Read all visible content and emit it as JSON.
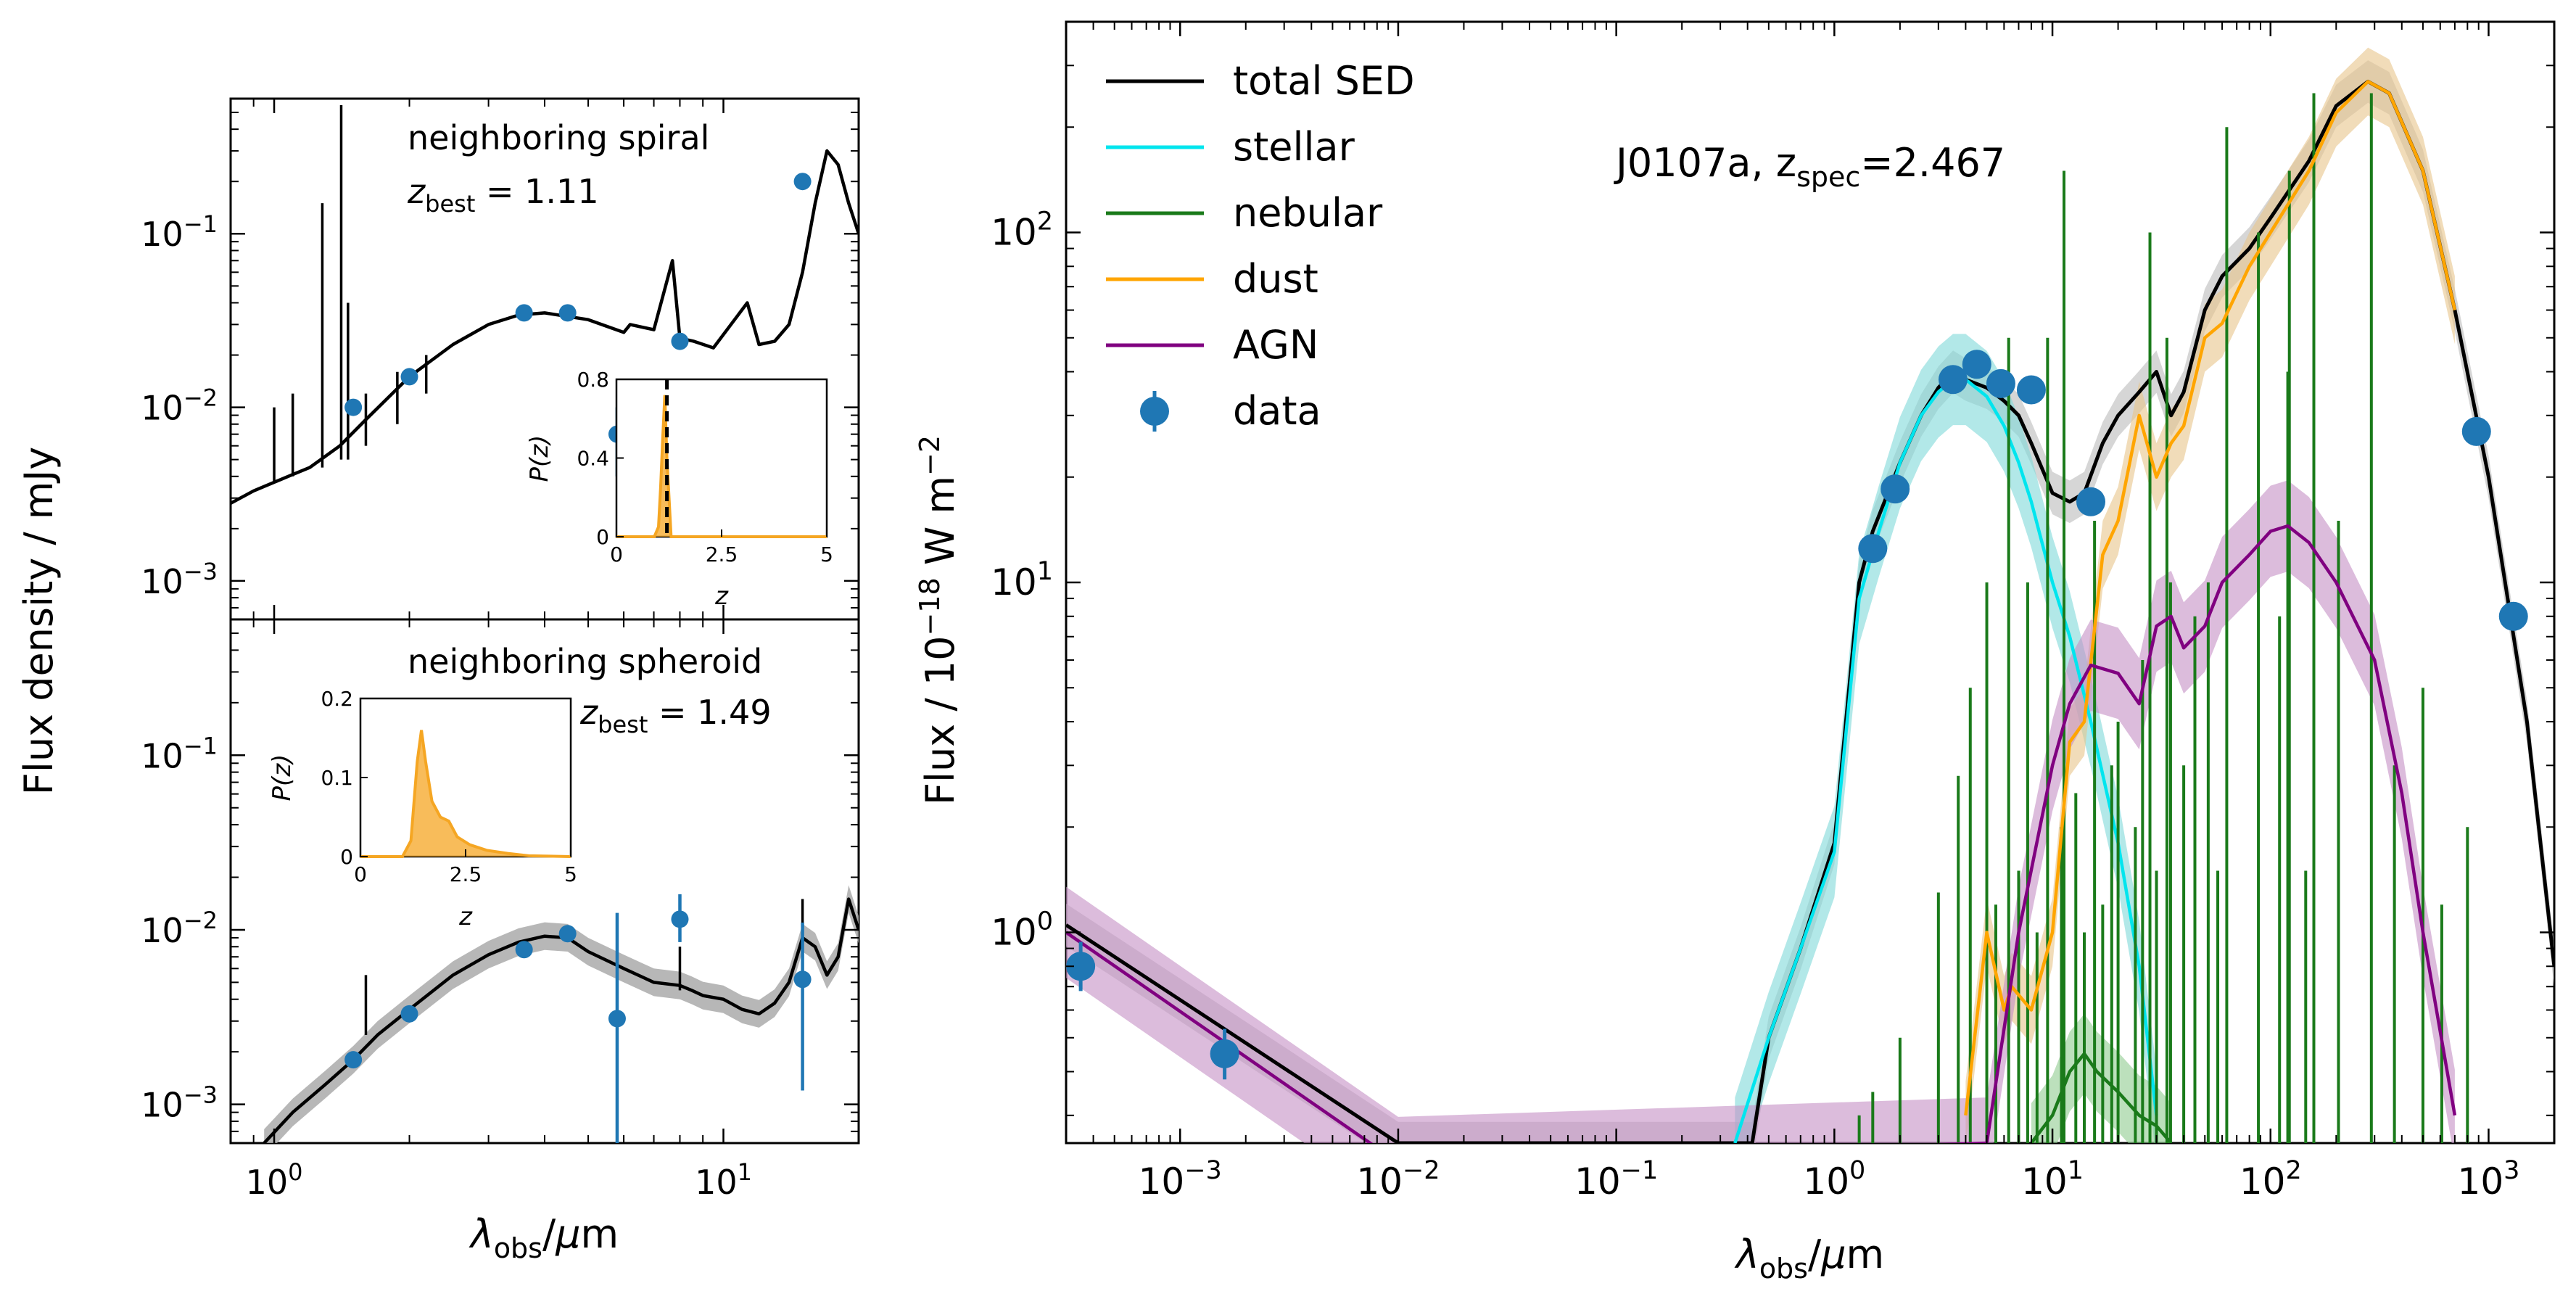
{
  "figure": {
    "left_ylabel": "Flux density / mJy",
    "left_xlabel": "λobs/μm",
    "right_ylabel": "Flux / 10−18 W m−2",
    "right_xlabel": "λobs/μm"
  },
  "chart_data": [
    {
      "id": "spiral",
      "type": "line",
      "title": "neighboring spiral",
      "annotation": {
        "prefix": "z",
        "sub": "best",
        "rest": " = 1.11"
      },
      "xscale": "log",
      "yscale": "log",
      "xlim": [
        0.8,
        20
      ],
      "ylim": [
        0.0006,
        0.6
      ],
      "xticks": [
        {
          "v": 1,
          "base": "10",
          "exp": "0"
        },
        {
          "v": 10,
          "base": "10",
          "exp": "1"
        }
      ],
      "yticks": [
        {
          "v": 0.001,
          "base": "10",
          "exp": "−3"
        },
        {
          "v": 0.01,
          "base": "10",
          "exp": "−2"
        },
        {
          "v": 0.1,
          "base": "10",
          "exp": "−1"
        }
      ],
      "series": [
        {
          "name": "total SED",
          "color": "#000000",
          "x": [
            0.8,
            0.9,
            1.0,
            1.1,
            1.2,
            1.4,
            1.6,
            2.0,
            2.5,
            3.0,
            3.5,
            4.0,
            5.0,
            6.0,
            6.2,
            7.0,
            7.7,
            8.0,
            8.6,
            9.5,
            11.3,
            12.0,
            13.0,
            14.0,
            15.0,
            16.0,
            17.0,
            18.0,
            19.0,
            20.0
          ],
          "y": [
            0.0028,
            0.0033,
            0.0037,
            0.0041,
            0.0045,
            0.006,
            0.0085,
            0.015,
            0.023,
            0.03,
            0.034,
            0.035,
            0.032,
            0.027,
            0.03,
            0.028,
            0.07,
            0.025,
            0.024,
            0.022,
            0.04,
            0.023,
            0.024,
            0.03,
            0.06,
            0.15,
            0.3,
            0.25,
            0.15,
            0.1
          ]
        },
        {
          "name": "emission lines",
          "color": "#000000",
          "lines": [
            [
              1.0,
              0.0037,
              0.01
            ],
            [
              1.1,
              0.004,
              0.012
            ],
            [
              1.28,
              0.0045,
              0.15
            ],
            [
              1.41,
              0.005,
              0.55
            ],
            [
              1.46,
              0.005,
              0.04
            ],
            [
              1.6,
              0.006,
              0.012
            ],
            [
              1.88,
              0.008,
              0.016
            ],
            [
              2.18,
              0.012,
              0.02
            ]
          ]
        }
      ],
      "points": [
        {
          "x": 1.5,
          "y": 0.01
        },
        {
          "x": 2.0,
          "y": 0.015
        },
        {
          "x": 3.6,
          "y": 0.035
        },
        {
          "x": 4.5,
          "y": 0.035
        },
        {
          "x": 5.8,
          "y": 0.007,
          "err": [
            0.004,
            0.01
          ]
        },
        {
          "x": 8.0,
          "y": 0.024
        },
        {
          "x": 15.0,
          "y": 0.2
        }
      ],
      "inset": {
        "type": "area",
        "ylabel": "P(z)",
        "xlabel": "z",
        "xlim": [
          0,
          5
        ],
        "ylim": [
          0,
          0.8
        ],
        "xticks": [
          "0",
          "2.5",
          "5"
        ],
        "yticks": [
          "0",
          "0.4",
          "0.8"
        ],
        "x": [
          0,
          0.9,
          1.0,
          1.05,
          1.1,
          1.15,
          1.2,
          1.3,
          5
        ],
        "y": [
          0,
          0,
          0.05,
          0.25,
          0.5,
          0.72,
          0.4,
          0.0,
          0
        ],
        "zspec": 1.2,
        "color": "#f5a623"
      }
    },
    {
      "id": "spheroid",
      "type": "line",
      "title": "neighboring spheroid",
      "annotation": {
        "prefix": "z",
        "sub": "best",
        "rest": " = 1.49"
      },
      "xscale": "log",
      "yscale": "log",
      "xlim": [
        0.8,
        20
      ],
      "ylim": [
        0.0006,
        0.6
      ],
      "xticks": [
        {
          "v": 1,
          "base": "10",
          "exp": "0"
        },
        {
          "v": 10,
          "base": "10",
          "exp": "1"
        }
      ],
      "xlabel_bottom": true,
      "yticks": [
        {
          "v": 0.001,
          "base": "10",
          "exp": "−3"
        },
        {
          "v": 0.01,
          "base": "10",
          "exp": "−2"
        },
        {
          "v": 0.1,
          "base": "10",
          "exp": "−1"
        }
      ],
      "series": [
        {
          "name": "total SED",
          "color": "#000000",
          "band_color": "#aaaaaa",
          "band_factor": 1.2,
          "x": [
            0.95,
            1.1,
            1.3,
            1.5,
            1.7,
            2.0,
            2.5,
            3.0,
            3.5,
            4.0,
            4.5,
            5.0,
            6.0,
            7.0,
            8.0,
            8.5,
            9.0,
            10.0,
            11.0,
            12.0,
            13.0,
            14.0,
            15.0,
            16.0,
            17.0,
            18.0,
            19.0,
            20.0
          ],
          "y": [
            0.0006,
            0.0009,
            0.0013,
            0.0018,
            0.0025,
            0.0035,
            0.0055,
            0.0072,
            0.0085,
            0.0092,
            0.009,
            0.0075,
            0.006,
            0.005,
            0.0048,
            0.0045,
            0.0042,
            0.004,
            0.0035,
            0.0033,
            0.0038,
            0.005,
            0.009,
            0.008,
            0.0055,
            0.007,
            0.015,
            0.01
          ]
        },
        {
          "name": "emission lines",
          "color": "#000000",
          "lines": [
            [
              1.6,
              0.0025,
              0.0055
            ],
            [
              8.0,
              0.0045,
              0.008
            ],
            [
              15.0,
              0.005,
              0.015
            ]
          ]
        }
      ],
      "points": [
        {
          "x": 1.5,
          "y": 0.0018
        },
        {
          "x": 2.0,
          "y": 0.0033
        },
        {
          "x": 3.6,
          "y": 0.0077
        },
        {
          "x": 4.5,
          "y": 0.0095
        },
        {
          "x": 5.8,
          "y": 0.0031,
          "err": [
            0.0005,
            0.0125
          ]
        },
        {
          "x": 8.0,
          "y": 0.0115,
          "err": [
            0.0085,
            0.016
          ]
        },
        {
          "x": 15.0,
          "y": 0.0052,
          "err": [
            0.0012,
            0.011
          ]
        }
      ],
      "inset": {
        "type": "area",
        "ylabel": "P(z)",
        "xlabel": "z",
        "xlim": [
          0,
          5
        ],
        "ylim": [
          0,
          0.2
        ],
        "xticks": [
          "0",
          "2.5",
          "5"
        ],
        "yticks": [
          "0",
          "0.1",
          "0.2"
        ],
        "x": [
          0,
          1.0,
          1.2,
          1.35,
          1.45,
          1.55,
          1.7,
          1.9,
          2.1,
          2.3,
          2.6,
          3.0,
          3.5,
          4.0,
          5
        ],
        "y": [
          0,
          0,
          0.02,
          0.12,
          0.16,
          0.12,
          0.07,
          0.05,
          0.045,
          0.025,
          0.015,
          0.008,
          0.004,
          0.001,
          0
        ],
        "color": "#f5a623"
      }
    },
    {
      "id": "J0107a",
      "type": "line",
      "title": "J0107a",
      "annotation": {
        "prefix": "J0107a, z",
        "sub": "spec",
        "rest": "=2.467"
      },
      "xscale": "log",
      "yscale": "log",
      "xlim": [
        0.0003,
        2000
      ],
      "ylim": [
        0.25,
        400
      ],
      "xticks": [
        {
          "v": 0.001,
          "base": "10",
          "exp": "−3"
        },
        {
          "v": 0.01,
          "base": "10",
          "exp": "−2"
        },
        {
          "v": 0.1,
          "base": "10",
          "exp": "−1"
        },
        {
          "v": 1,
          "base": "10",
          "exp": "0"
        },
        {
          "v": 10,
          "base": "10",
          "exp": "1"
        },
        {
          "v": 100,
          "base": "10",
          "exp": "2"
        },
        {
          "v": 1000,
          "base": "10",
          "exp": "3"
        }
      ],
      "yticks": [
        {
          "v": 1,
          "base": "10",
          "exp": "0"
        },
        {
          "v": 10,
          "base": "10",
          "exp": "1"
        },
        {
          "v": 100,
          "base": "10",
          "exp": "2"
        }
      ],
      "legend": {
        "placement": "top-left",
        "entries": [
          "total SED",
          "stellar",
          "nebular",
          "dust",
          "AGN",
          "data"
        ]
      },
      "series": [
        {
          "name": "total SED",
          "color": "#000000",
          "x": [
            0.0003,
            0.01,
            0.42,
            0.5,
            0.7,
            1.0,
            1.3,
            1.5,
            2.0,
            2.5,
            3.0,
            3.5,
            4.0,
            5.0,
            6.0,
            7.0,
            8.0,
            10.0,
            12.0,
            14.0,
            17.0,
            20.0,
            25.0,
            30.0,
            35.0,
            40.0,
            50.0,
            60.0,
            80.0,
            100.0,
            150.0,
            200.0,
            280.0,
            350.0,
            500.0,
            700.0,
            1000.0,
            1500.0,
            2000.0
          ],
          "y": [
            1.05,
            0.25,
            0.25,
            0.5,
            0.9,
            1.8,
            10,
            14,
            22,
            30,
            36,
            40,
            38,
            36,
            33,
            30,
            25,
            18,
            17,
            18,
            25,
            30,
            35,
            40,
            30,
            35,
            60,
            75,
            90,
            110,
            160,
            230,
            270,
            250,
            150,
            60,
            20,
            4,
            0.8
          ],
          "band_color": "#bbbbbb",
          "band_factor": 1.15
        },
        {
          "name": "stellar",
          "color": "#00e5ee",
          "band_color": "#7fd8d8",
          "band_factor": 1.35,
          "x": [
            0.35,
            0.5,
            0.7,
            1.0,
            1.3,
            1.6,
            2.0,
            2.5,
            3.0,
            3.5,
            4.0,
            5.0,
            6.0,
            7.0,
            8.0,
            10.0,
            12.0,
            15.0,
            20.0,
            25.0,
            30.0
          ],
          "y": [
            0.25,
            0.5,
            0.9,
            1.7,
            9,
            14,
            22,
            30,
            35,
            38,
            38,
            34,
            28,
            22,
            17,
            10,
            7,
            4,
            1.8,
            0.8,
            0.3
          ]
        },
        {
          "name": "nebular",
          "color": "#1a7a1a",
          "band_color": "#8fcc8f",
          "band_factor": 1.3,
          "x": [
            8.0,
            10.0,
            12.0,
            14.0,
            16.0,
            20.0,
            25.0,
            30.0,
            35.0
          ],
          "y": [
            0.25,
            0.3,
            0.4,
            0.45,
            0.4,
            0.35,
            0.3,
            0.28,
            0.25
          ],
          "lines": [
            [
              1.3,
              0.25,
              0.3
            ],
            [
              1.5,
              0.25,
              0.35
            ],
            [
              2.0,
              0.25,
              0.5
            ],
            [
              3.0,
              0.25,
              1.3
            ],
            [
              3.7,
              0.25,
              2.8
            ],
            [
              4.2,
              0.25,
              5
            ],
            [
              5.0,
              0.25,
              10
            ],
            [
              5.5,
              0.25,
              1.2
            ],
            [
              6.3,
              0.25,
              50
            ],
            [
              7.0,
              0.25,
              1.5
            ],
            [
              7.7,
              0.25,
              10
            ],
            [
              8.5,
              0.25,
              1.0
            ],
            [
              9.5,
              0.25,
              50
            ],
            [
              11.0,
              0.25,
              2.0
            ],
            [
              11.3,
              0.25,
              150
            ],
            [
              12.8,
              0.25,
              2.5
            ],
            [
              14.0,
              0.25,
              1.0
            ],
            [
              15.6,
              0.25,
              15
            ],
            [
              17.0,
              0.25,
              1.2
            ],
            [
              18.7,
              0.25,
              3
            ],
            [
              20.0,
              0.25,
              4
            ],
            [
              24.0,
              0.25,
              2
            ],
            [
              25.9,
              0.25,
              6
            ],
            [
              28.0,
              0.25,
              100
            ],
            [
              30.0,
              0.25,
              1.5
            ],
            [
              33.5,
              0.25,
              50
            ],
            [
              34.8,
              0.25,
              10
            ],
            [
              40.0,
              0.25,
              3
            ],
            [
              45.0,
              0.25,
              8
            ],
            [
              51.8,
              0.25,
              10
            ],
            [
              57.3,
              0.25,
              1.5
            ],
            [
              63.0,
              0.25,
              200
            ],
            [
              88.0,
              0.25,
              100
            ],
            [
              110.0,
              0.25,
              8
            ],
            [
              120.0,
              0.25,
              40
            ],
            [
              122.0,
              0.25,
              150
            ],
            [
              145.0,
              0.25,
              1.5
            ],
            [
              158.0,
              0.25,
              250
            ],
            [
              205.0,
              0.25,
              15
            ],
            [
              290.0,
              0.25,
              250
            ],
            [
              370.0,
              0.25,
              3
            ],
            [
              500.0,
              0.25,
              5
            ],
            [
              610.0,
              0.25,
              1.2
            ],
            [
              800.0,
              0.25,
              2
            ]
          ]
        },
        {
          "name": "dust",
          "color": "#ffa500",
          "band_color": "#e8c58a",
          "band_factor": 1.25,
          "x": [
            4.0,
            5.0,
            6.0,
            6.5,
            8.0,
            10.0,
            12.0,
            14.0,
            17.0,
            20.0,
            25.0,
            30.0,
            35.0,
            40.0,
            50.0,
            60.0,
            80.0,
            100.0,
            150.0,
            200.0,
            280.0,
            350.0,
            500.0,
            700.0
          ],
          "y": [
            0.3,
            1.0,
            0.6,
            0.7,
            0.6,
            1.0,
            3.5,
            4.0,
            12,
            15,
            30,
            20,
            25,
            28,
            50,
            55,
            80,
            100,
            150,
            220,
            270,
            250,
            150,
            60
          ]
        },
        {
          "name": "AGN",
          "color": "#800080",
          "band_color": "#c48fc4",
          "band_factor": 1.35,
          "x": [
            0.0003,
            0.01,
            5.0,
            7.0,
            10.0,
            12.0,
            15.0,
            20.0,
            25.0,
            30.0,
            35.0,
            40.0,
            50.0,
            60.0,
            80.0,
            100.0,
            120.0,
            150.0,
            200.0,
            300.0,
            400.0,
            500.0,
            700.0
          ],
          "y": [
            1.0,
            0.22,
            0.25,
            1.0,
            3.0,
            4.5,
            5.8,
            5.5,
            4.5,
            7.5,
            8.0,
            6.5,
            7.5,
            10,
            12,
            14,
            14.5,
            13,
            10,
            6,
            2.5,
            1.0,
            0.3
          ]
        }
      ],
      "points": [
        {
          "x": 0.00035,
          "y": 0.8,
          "err": [
            0.68,
            0.94
          ]
        },
        {
          "x": 0.0016,
          "y": 0.45,
          "err": [
            0.38,
            0.53
          ]
        },
        {
          "x": 1.5,
          "y": 12.5
        },
        {
          "x": 1.9,
          "y": 18.5
        },
        {
          "x": 3.5,
          "y": 38
        },
        {
          "x": 4.5,
          "y": 42
        },
        {
          "x": 5.8,
          "y": 37
        },
        {
          "x": 8.0,
          "y": 35.5
        },
        {
          "x": 15.0,
          "y": 17
        },
        {
          "x": 880.0,
          "y": 27
        },
        {
          "x": 1300.0,
          "y": 8
        }
      ],
      "point_color": "#1f77b4"
    }
  ]
}
